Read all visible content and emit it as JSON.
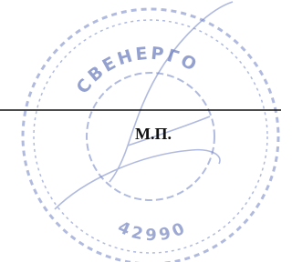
{
  "stamp": {
    "mark": "М.П.",
    "ring_text": "СВЕНЕРГО",
    "number": "42990"
  }
}
